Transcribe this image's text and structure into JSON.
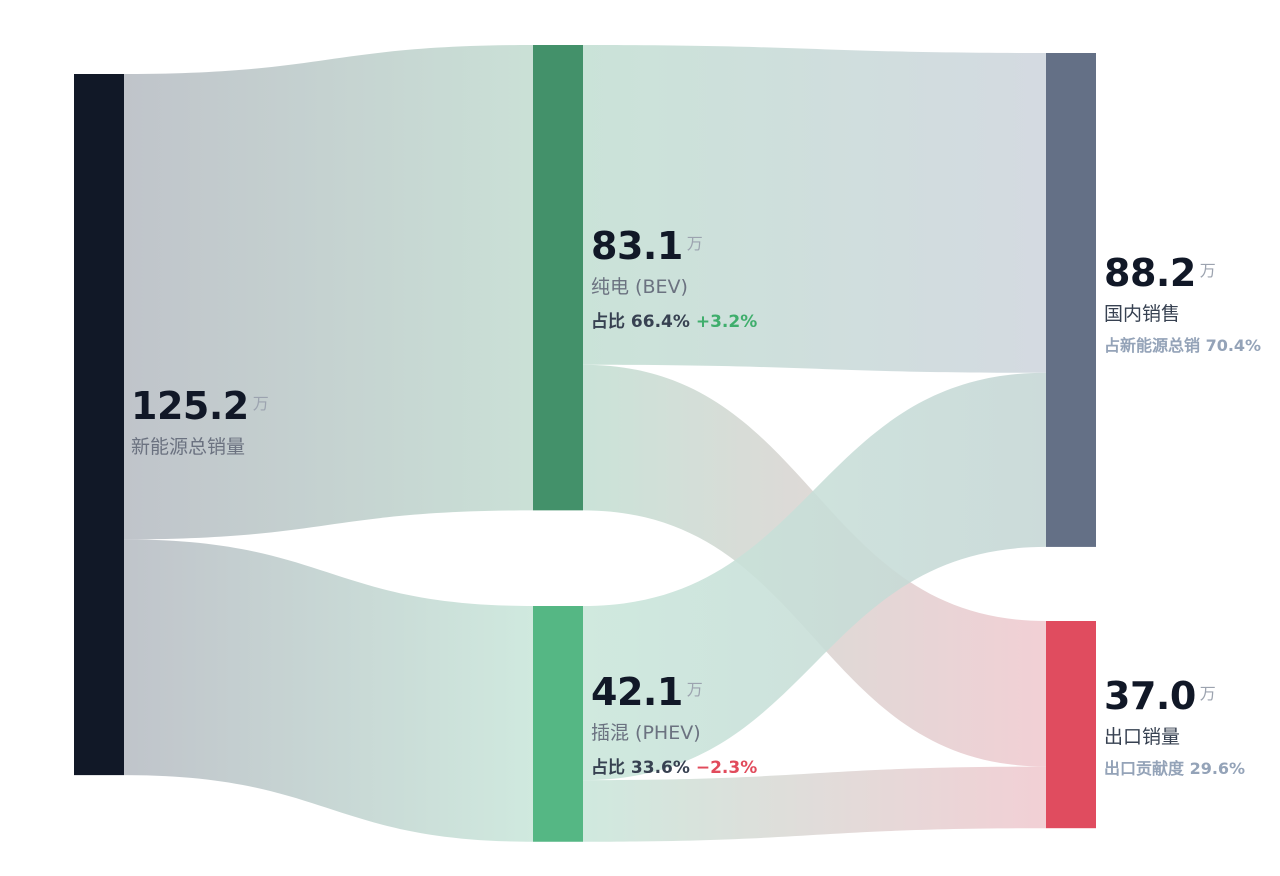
{
  "chart_data": {
    "type": "sankey",
    "unit": "万",
    "nodes": [
      {
        "id": "total",
        "value": "125.2",
        "name": "新能源总销量",
        "color": "#111827"
      },
      {
        "id": "bev",
        "value": "83.1",
        "name": "纯电 (BEV)",
        "share_label": "占比 66.4%",
        "change": "+3.2%",
        "color": "#43916a"
      },
      {
        "id": "phev",
        "value": "42.1",
        "name": "插混 (PHEV)",
        "share_label": "占比 33.6%",
        "change": "−2.3%",
        "color": "#55b784"
      },
      {
        "id": "domestic",
        "value": "88.2",
        "name": "国内销售",
        "sub_label": "占新能源总销 70.4%",
        "color": "#647086"
      },
      {
        "id": "export",
        "value": "37.0",
        "name": "出口销量",
        "sub_label": "出口贡献度 29.6%",
        "color": "#e04c5f"
      }
    ],
    "links": [
      {
        "source": "total",
        "target": "bev",
        "value": 83.1
      },
      {
        "source": "total",
        "target": "phev",
        "value": 42.1
      },
      {
        "source": "bev",
        "target": "domestic",
        "value": 57.1
      },
      {
        "source": "bev",
        "target": "export",
        "value": 26.0
      },
      {
        "source": "phev",
        "target": "domestic",
        "value": 31.1
      },
      {
        "source": "phev",
        "target": "export",
        "value": 11.0
      }
    ]
  }
}
